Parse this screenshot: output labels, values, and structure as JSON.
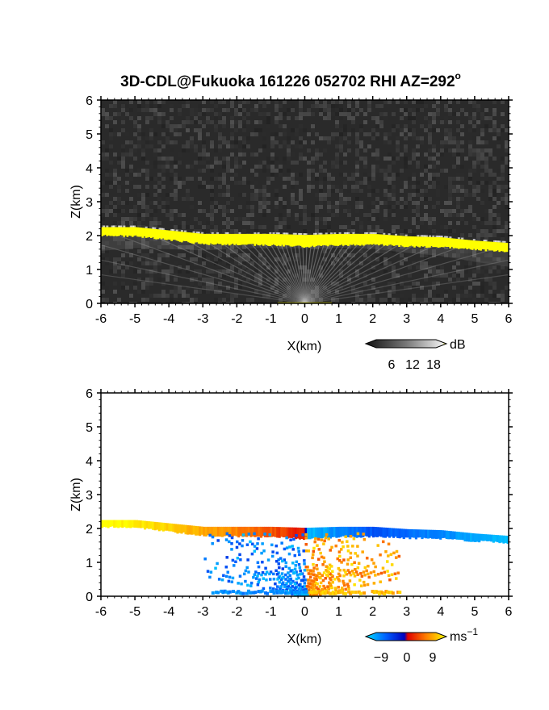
{
  "title": "3D-CDL@Fukuoka 161226 052702 RHI AZ=292",
  "title_sup": "o",
  "chart_data": [
    {
      "type": "heatmap",
      "quantity": "reflectivity",
      "xlabel": "X(km)",
      "ylabel": "Z(km)",
      "xlim": [
        -6,
        6
      ],
      "ylim": [
        0,
        6
      ],
      "xticks": [
        "-6",
        "-5",
        "-4",
        "-3",
        "-2",
        "-1",
        "0",
        "1",
        "2",
        "3",
        "4",
        "5",
        "6"
      ],
      "yticks": [
        "0",
        "1",
        "2",
        "3",
        "4",
        "5",
        "6"
      ],
      "colorbar": {
        "ticks": [
          "6",
          "12",
          "18"
        ],
        "unit": "dB"
      },
      "layer_top_km": [
        [
          -6,
          2.25
        ],
        [
          -5,
          2.25
        ],
        [
          -4,
          2.15
        ],
        [
          -3,
          2.05
        ],
        [
          -2,
          2.05
        ],
        [
          -1,
          2.05
        ],
        [
          0,
          2.02
        ],
        [
          1,
          2.05
        ],
        [
          2,
          2.05
        ],
        [
          3,
          1.98
        ],
        [
          4,
          1.95
        ],
        [
          5,
          1.85
        ],
        [
          6,
          1.78
        ]
      ],
      "colors": {
        "background": "#2a2a2a",
        "strong": "#ffff00"
      }
    },
    {
      "type": "heatmap",
      "quantity": "doppler velocity",
      "xlabel": "X(km)",
      "ylabel": "Z(km)",
      "xlim": [
        -6,
        6
      ],
      "ylim": [
        0,
        6
      ],
      "xticks": [
        "-6",
        "-5",
        "-4",
        "-3",
        "-2",
        "-1",
        "0",
        "1",
        "2",
        "3",
        "4",
        "5",
        "6"
      ],
      "yticks": [
        "0",
        "1",
        "2",
        "3",
        "4",
        "5",
        "6"
      ],
      "colorbar": {
        "ticks": [
          "−9",
          "0",
          "9"
        ],
        "unit": "ms",
        "unit_sup": "−1"
      },
      "colors": {
        "negative": "#0033ff",
        "zero": "#ff2020",
        "positive": "#ffff00",
        "light_negative": "#00b4ff"
      }
    }
  ]
}
